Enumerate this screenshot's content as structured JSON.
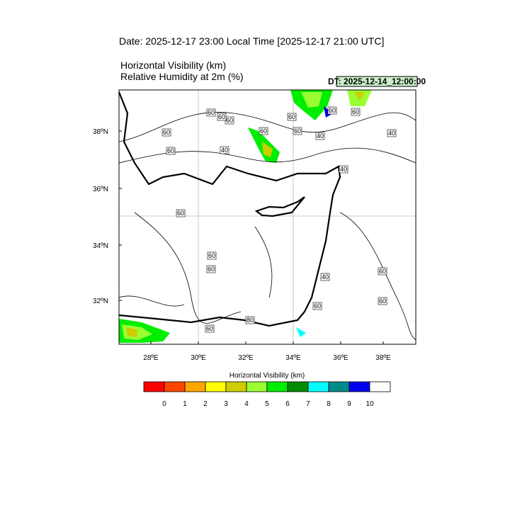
{
  "header": {
    "title": "Date: 2025-12-17  23:00 Local Time [2025-12-17  21:00 UTC]",
    "field1": "Horizontal Visibility   (km)",
    "field2": "Relative Humidity at 2m   (%)",
    "dt": "DT: 2025-12-14_12:00:00"
  },
  "map": {
    "lat_labels": [
      "38ºN",
      "36ºN",
      "34ºN",
      "32ºN"
    ],
    "lon_labels": [
      "28ºE",
      "30ºE",
      "32ºE",
      "34ºE",
      "36ºE",
      "38ºE"
    ],
    "contour_labels": [
      "60",
      "60",
      "60",
      "60",
      "60",
      "60",
      "60",
      "40",
      "40",
      "40",
      "60",
      "40",
      "60",
      "60",
      "60",
      "60",
      "40",
      "60",
      "60",
      "60",
      "80",
      "60",
      "60"
    ]
  },
  "colorbar": {
    "title": "Horizontal Visibility  (km)",
    "colors": [
      "#ff0000",
      "#ff4500",
      "#ffa500",
      "#ffff00",
      "#cdcd00",
      "#99ff33",
      "#00ee00",
      "#008b00",
      "#00ffff",
      "#008b8b",
      "#0000ee",
      "#ffffff"
    ],
    "labels": [
      "0",
      "1",
      "2",
      "3",
      "4",
      "5",
      "6",
      "7",
      "8",
      "9",
      "10"
    ]
  }
}
